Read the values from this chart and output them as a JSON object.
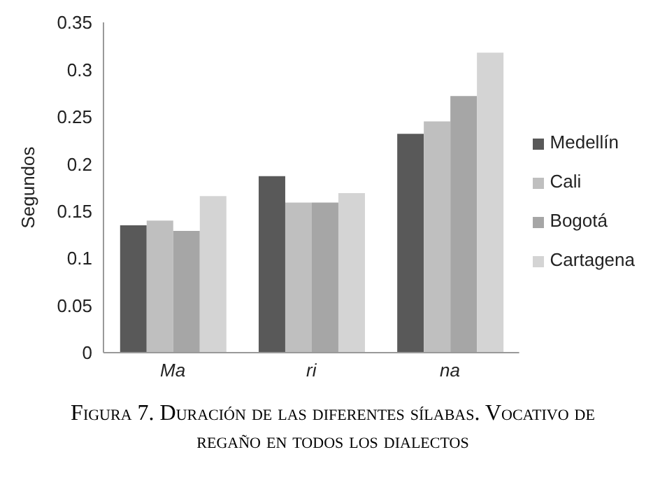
{
  "chart_data": {
    "type": "bar",
    "title": "Figura 7. Duración de las diferentes sílabas. Vocativo de regaño en todos los dialectos",
    "ylabel": "Segundos",
    "categories": [
      "Ma",
      "ri",
      "na"
    ],
    "series": [
      {
        "name": "Medellín",
        "color": "#595959",
        "values": [
          0.135,
          0.187,
          0.232
        ]
      },
      {
        "name": "Cali",
        "color": "#bfbfbf",
        "values": [
          0.14,
          0.159,
          0.245
        ]
      },
      {
        "name": "Bogotá",
        "color": "#a6a6a6",
        "values": [
          0.129,
          0.159,
          0.272
        ]
      },
      {
        "name": "Cartagena",
        "color": "#d4d4d4",
        "values": [
          0.166,
          0.169,
          0.318
        ]
      }
    ],
    "ylim": [
      0,
      0.35
    ],
    "yticks": [
      0,
      0.05,
      0.1,
      0.15,
      0.2,
      0.25,
      0.3,
      0.35
    ],
    "grid": false,
    "legend": "right"
  }
}
